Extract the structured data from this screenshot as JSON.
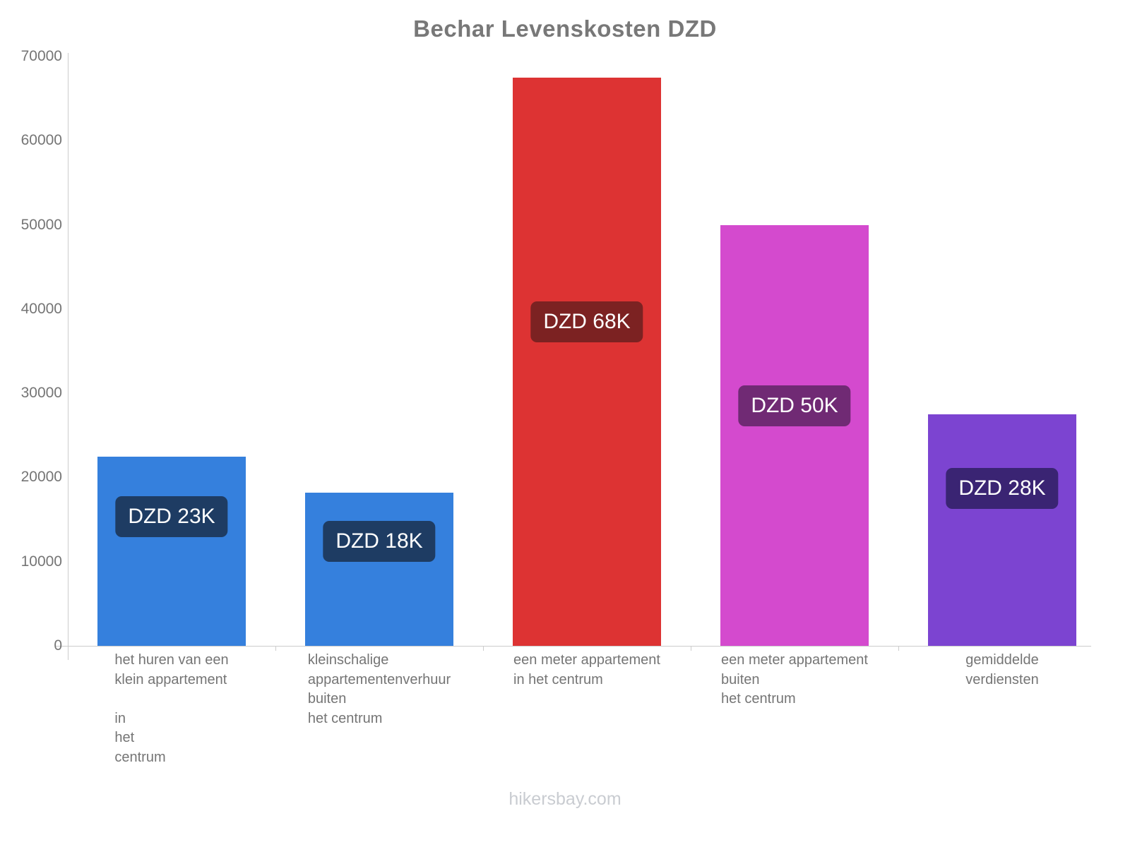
{
  "title": "Bechar Levenskosten DZD",
  "footer": "hikersbay.com",
  "chart_data": {
    "type": "bar",
    "title": "Bechar Levenskosten DZD",
    "currency": "DZD",
    "categories": [
      "het huren van een klein appartement in het centrum",
      "kleinschalige appartementenverhuur buiten het centrum",
      "een meter appartement in het centrum",
      "een meter appartement buiten het centrum",
      "gemiddelde verdiensten"
    ],
    "category_lines": [
      [
        "het huren van een",
        "klein appartement",
        "",
        "in",
        "het",
        "centrum"
      ],
      [
        "kleinschalige",
        "appartementenverhuur",
        "buiten",
        "het centrum"
      ],
      [
        "een meter appartement",
        "in het centrum"
      ],
      [
        "een meter appartement",
        "buiten",
        "het centrum"
      ],
      [
        "gemiddelde",
        "verdiensten"
      ]
    ],
    "values": [
      22500,
      18200,
      67500,
      50000,
      27500
    ],
    "bar_labels": [
      "DZD 23K",
      "DZD 18K",
      "DZD 68K",
      "DZD 50K",
      "DZD 28K"
    ],
    "bar_colors": [
      "#3580dd",
      "#3580dd",
      "#dd3333",
      "#d44ace",
      "#7c44d1"
    ],
    "badge_colors": [
      "#1e3c63",
      "#1e3c63",
      "#7c2222",
      "#702a74",
      "#3a2473"
    ],
    "text_color": "#757575",
    "axis_color": "#cccccc",
    "ylim": [
      0,
      70000
    ],
    "yticks": [
      0,
      10000,
      20000,
      30000,
      40000,
      50000,
      60000,
      70000
    ],
    "grid": false,
    "legend": "none"
  }
}
